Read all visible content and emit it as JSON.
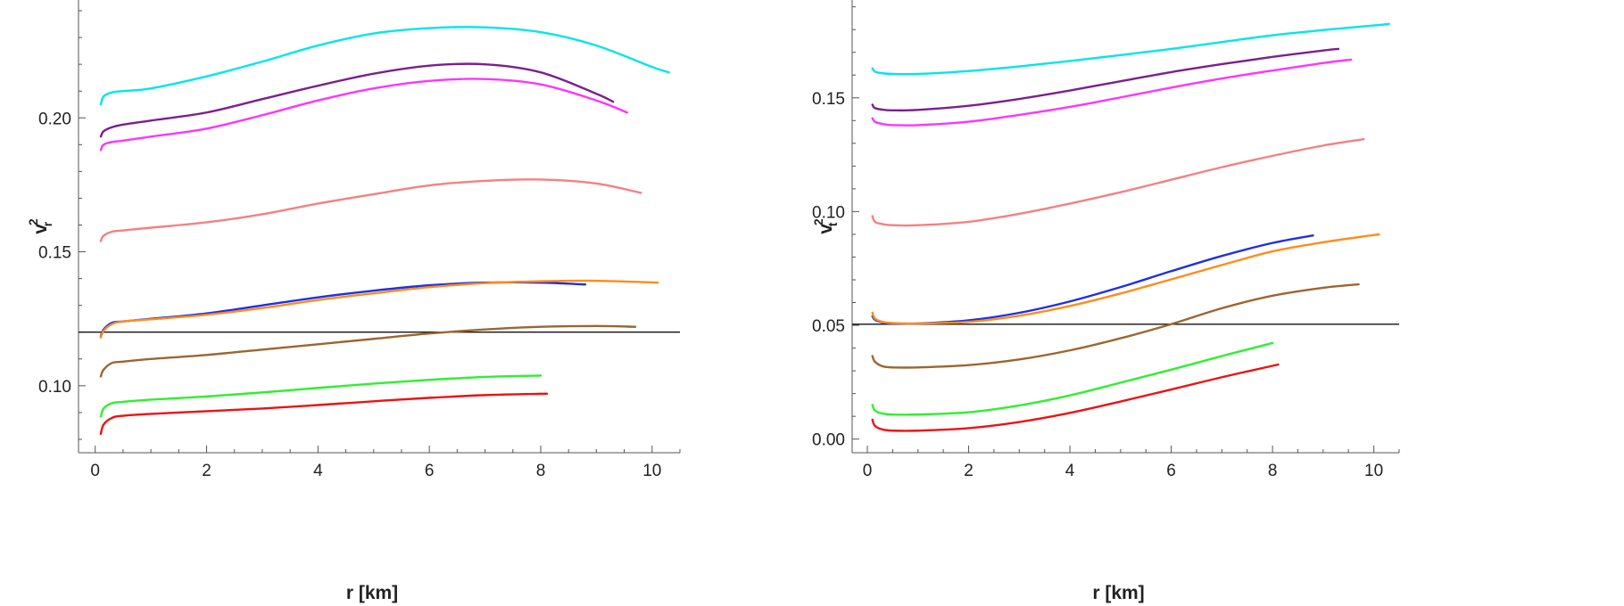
{
  "chart_data": [
    {
      "type": "line",
      "xlabel": "r [km]",
      "ylabel": "v",
      "ylabel_sup": "2",
      "ylabel_sub": "r",
      "xlim": [
        -0.3,
        10.5
      ],
      "ylim": [
        0.075,
        0.244
      ],
      "x_ticks": [
        0,
        2,
        4,
        6,
        8,
        10
      ],
      "x_tick_labels": [
        "0",
        "2",
        "4",
        "6",
        "8",
        "10"
      ],
      "y_ticks": [
        0.1,
        0.15,
        0.2
      ],
      "y_tick_labels": [
        "0.10",
        "0.15",
        "0.20"
      ],
      "x_minor_step": 0.5,
      "y_minor_step": 0.01,
      "hline": 0.12,
      "grid": false,
      "series": [
        {
          "color": "#00e5ee",
          "points": [
            [
              0.1,
              0.205
            ],
            [
              0.15,
              0.208
            ],
            [
              0.3,
              0.2095
            ],
            [
              0.5,
              0.21
            ],
            [
              1,
              0.211
            ],
            [
              2,
              0.2155
            ],
            [
              3,
              0.221
            ],
            [
              4,
              0.227
            ],
            [
              5,
              0.2315
            ],
            [
              6,
              0.2335
            ],
            [
              7,
              0.2338
            ],
            [
              8,
              0.232
            ],
            [
              9,
              0.227
            ],
            [
              10,
              0.219
            ],
            [
              10.3,
              0.217
            ]
          ]
        },
        {
          "color": "#7b1f8f",
          "points": [
            [
              0.1,
              0.193
            ],
            [
              0.15,
              0.195
            ],
            [
              0.3,
              0.1965
            ],
            [
              0.5,
              0.1975
            ],
            [
              1,
              0.199
            ],
            [
              2,
              0.202
            ],
            [
              3,
              0.207
            ],
            [
              4,
              0.212
            ],
            [
              5,
              0.2165
            ],
            [
              6,
              0.2195
            ],
            [
              7,
              0.22
            ],
            [
              8,
              0.217
            ],
            [
              9,
              0.209
            ],
            [
              9.3,
              0.206
            ]
          ]
        },
        {
          "color": "#ff33ff",
          "points": [
            [
              0.1,
              0.188
            ],
            [
              0.15,
              0.19
            ],
            [
              0.3,
              0.191
            ],
            [
              0.5,
              0.1915
            ],
            [
              1,
              0.193
            ],
            [
              2,
              0.196
            ],
            [
              3,
              0.201
            ],
            [
              4,
              0.2065
            ],
            [
              5,
              0.211
            ],
            [
              6,
              0.2138
            ],
            [
              7,
              0.2145
            ],
            [
              8,
              0.2125
            ],
            [
              9,
              0.2065
            ],
            [
              9.55,
              0.202
            ]
          ]
        },
        {
          "color": "#f58080",
          "points": [
            [
              0.1,
              0.154
            ],
            [
              0.15,
              0.156
            ],
            [
              0.3,
              0.1575
            ],
            [
              0.5,
              0.158
            ],
            [
              1,
              0.159
            ],
            [
              2,
              0.161
            ],
            [
              3,
              0.164
            ],
            [
              4,
              0.168
            ],
            [
              5,
              0.1715
            ],
            [
              6,
              0.1748
            ],
            [
              7,
              0.1765
            ],
            [
              8,
              0.177
            ],
            [
              9,
              0.1755
            ],
            [
              9.8,
              0.172
            ]
          ]
        },
        {
          "color": "#1f2fe6",
          "points": [
            [
              0.1,
              0.1185
            ],
            [
              0.15,
              0.121
            ],
            [
              0.3,
              0.1235
            ],
            [
              0.5,
              0.124
            ],
            [
              1,
              0.125
            ],
            [
              2,
              0.127
            ],
            [
              3,
              0.13
            ],
            [
              4,
              0.133
            ],
            [
              5,
              0.1355
            ],
            [
              6,
              0.1375
            ],
            [
              7,
              0.1385
            ],
            [
              8,
              0.1385
            ],
            [
              8.8,
              0.1378
            ]
          ]
        },
        {
          "color": "#ff8c1a",
          "points": [
            [
              0.1,
              0.118
            ],
            [
              0.15,
              0.1205
            ],
            [
              0.3,
              0.123
            ],
            [
              0.5,
              0.124
            ],
            [
              1,
              0.1248
            ],
            [
              2,
              0.1265
            ],
            [
              3,
              0.129
            ],
            [
              4,
              0.132
            ],
            [
              5,
              0.1345
            ],
            [
              6,
              0.1368
            ],
            [
              7,
              0.1383
            ],
            [
              8,
              0.139
            ],
            [
              9,
              0.1392
            ],
            [
              10.1,
              0.1385
            ]
          ]
        },
        {
          "color": "#9c6530",
          "points": [
            [
              0.1,
              0.1035
            ],
            [
              0.15,
              0.106
            ],
            [
              0.3,
              0.1085
            ],
            [
              0.5,
              0.109
            ],
            [
              1,
              0.11
            ],
            [
              2,
              0.1115
            ],
            [
              3,
              0.1135
            ],
            [
              4,
              0.1155
            ],
            [
              5,
              0.1175
            ],
            [
              6,
              0.1195
            ],
            [
              7,
              0.121
            ],
            [
              8,
              0.122
            ],
            [
              9,
              0.1223
            ],
            [
              9.7,
              0.122
            ]
          ]
        },
        {
          "color": "#2ef02e",
          "points": [
            [
              0.1,
              0.0885
            ],
            [
              0.15,
              0.0915
            ],
            [
              0.3,
              0.0935
            ],
            [
              0.5,
              0.094
            ],
            [
              1,
              0.0948
            ],
            [
              2,
              0.096
            ],
            [
              3,
              0.0975
            ],
            [
              4,
              0.0992
            ],
            [
              5,
              0.1008
            ],
            [
              6,
              0.1022
            ],
            [
              7,
              0.1033
            ],
            [
              8,
              0.1038
            ]
          ]
        },
        {
          "color": "#ee1111",
          "points": [
            [
              0.1,
              0.082
            ],
            [
              0.15,
              0.0855
            ],
            [
              0.3,
              0.088
            ],
            [
              0.5,
              0.0888
            ],
            [
              1,
              0.0895
            ],
            [
              2,
              0.0905
            ],
            [
              3,
              0.0915
            ],
            [
              4,
              0.0928
            ],
            [
              5,
              0.0942
            ],
            [
              6,
              0.0955
            ],
            [
              7,
              0.0965
            ],
            [
              8,
              0.097
            ],
            [
              8.1,
              0.097
            ]
          ]
        }
      ]
    },
    {
      "type": "line",
      "xlabel": "r [km]",
      "ylabel": "v",
      "ylabel_sup": "2",
      "ylabel_sub": "t",
      "xlim": [
        -0.3,
        10.5
      ],
      "ylim": [
        -0.006,
        0.193
      ],
      "x_ticks": [
        0,
        2,
        4,
        6,
        8,
        10
      ],
      "x_tick_labels": [
        "0",
        "2",
        "4",
        "6",
        "8",
        "10"
      ],
      "y_ticks": [
        0.0,
        0.05,
        0.1,
        0.15
      ],
      "y_tick_labels": [
        "0.00",
        "0.05",
        "0.10",
        "0.15"
      ],
      "x_minor_step": 0.5,
      "y_minor_step": 0.01,
      "hline": 0.0505,
      "grid": false,
      "series": [
        {
          "color": "#00e5ee",
          "points": [
            [
              0.1,
              0.163
            ],
            [
              0.15,
              0.1615
            ],
            [
              0.3,
              0.1608
            ],
            [
              0.5,
              0.1605
            ],
            [
              1,
              0.1605
            ],
            [
              2,
              0.1618
            ],
            [
              3,
              0.1638
            ],
            [
              4,
              0.1662
            ],
            [
              5,
              0.1688
            ],
            [
              6,
              0.1715
            ],
            [
              7,
              0.1745
            ],
            [
              8,
              0.1775
            ],
            [
              9,
              0.1798
            ],
            [
              10,
              0.1818
            ],
            [
              10.3,
              0.1825
            ]
          ]
        },
        {
          "color": "#7b1f8f",
          "points": [
            [
              0.1,
              0.147
            ],
            [
              0.15,
              0.1455
            ],
            [
              0.3,
              0.1448
            ],
            [
              0.5,
              0.1445
            ],
            [
              1,
              0.1447
            ],
            [
              2,
              0.1465
            ],
            [
              3,
              0.1495
            ],
            [
              4,
              0.1532
            ],
            [
              5,
              0.1573
            ],
            [
              6,
              0.1613
            ],
            [
              7,
              0.1648
            ],
            [
              8,
              0.168
            ],
            [
              9,
              0.1708
            ],
            [
              9.3,
              0.1715
            ]
          ]
        },
        {
          "color": "#ff33ff",
          "points": [
            [
              0.1,
              0.141
            ],
            [
              0.15,
              0.1395
            ],
            [
              0.3,
              0.1385
            ],
            [
              0.5,
              0.138
            ],
            [
              1,
              0.138
            ],
            [
              2,
              0.1395
            ],
            [
              3,
              0.1425
            ],
            [
              4,
              0.146
            ],
            [
              5,
              0.1502
            ],
            [
              6,
              0.1545
            ],
            [
              7,
              0.1585
            ],
            [
              8,
              0.162
            ],
            [
              9,
              0.1653
            ],
            [
              9.55,
              0.1668
            ]
          ]
        },
        {
          "color": "#f58080",
          "points": [
            [
              0.1,
              0.098
            ],
            [
              0.15,
              0.0955
            ],
            [
              0.3,
              0.0945
            ],
            [
              0.5,
              0.094
            ],
            [
              1,
              0.094
            ],
            [
              2,
              0.0955
            ],
            [
              3,
              0.099
            ],
            [
              4,
              0.1035
            ],
            [
              5,
              0.1085
            ],
            [
              6,
              0.114
            ],
            [
              7,
              0.1195
            ],
            [
              8,
              0.1245
            ],
            [
              9,
              0.129
            ],
            [
              9.8,
              0.1318
            ]
          ]
        },
        {
          "color": "#1f2fe6",
          "points": [
            [
              0.1,
              0.054
            ],
            [
              0.15,
              0.0525
            ],
            [
              0.3,
              0.0513
            ],
            [
              0.5,
              0.0508
            ],
            [
              1,
              0.0508
            ],
            [
              2,
              0.0522
            ],
            [
              3,
              0.0555
            ],
            [
              4,
              0.0605
            ],
            [
              5,
              0.0668
            ],
            [
              6,
              0.0738
            ],
            [
              7,
              0.0805
            ],
            [
              8,
              0.0862
            ],
            [
              8.8,
              0.0895
            ]
          ]
        },
        {
          "color": "#ff8c1a",
          "points": [
            [
              0.1,
              0.0555
            ],
            [
              0.15,
              0.053
            ],
            [
              0.3,
              0.0515
            ],
            [
              0.5,
              0.051
            ],
            [
              1,
              0.0508
            ],
            [
              2,
              0.0515
            ],
            [
              3,
              0.0542
            ],
            [
              4,
              0.0585
            ],
            [
              5,
              0.064
            ],
            [
              6,
              0.0702
            ],
            [
              7,
              0.0765
            ],
            [
              8,
              0.0825
            ],
            [
              9,
              0.0865
            ],
            [
              10.1,
              0.09
            ]
          ]
        },
        {
          "color": "#9c6530",
          "points": [
            [
              0.1,
              0.0365
            ],
            [
              0.15,
              0.034
            ],
            [
              0.3,
              0.032
            ],
            [
              0.5,
              0.0315
            ],
            [
              1,
              0.0315
            ],
            [
              2,
              0.0325
            ],
            [
              3,
              0.035
            ],
            [
              4,
              0.039
            ],
            [
              5,
              0.0443
            ],
            [
              6,
              0.0505
            ],
            [
              7,
              0.0575
            ],
            [
              8,
              0.063
            ],
            [
              9,
              0.0665
            ],
            [
              9.7,
              0.068
            ]
          ]
        },
        {
          "color": "#2ef02e",
          "points": [
            [
              0.1,
              0.015
            ],
            [
              0.15,
              0.0125
            ],
            [
              0.3,
              0.0112
            ],
            [
              0.5,
              0.0108
            ],
            [
              1,
              0.0108
            ],
            [
              2,
              0.0118
            ],
            [
              3,
              0.0148
            ],
            [
              4,
              0.0192
            ],
            [
              5,
              0.0248
            ],
            [
              6,
              0.0305
            ],
            [
              7,
              0.0365
            ],
            [
              8,
              0.0422
            ]
          ]
        },
        {
          "color": "#ee1111",
          "points": [
            [
              0.1,
              0.0085
            ],
            [
              0.15,
              0.0058
            ],
            [
              0.3,
              0.0042
            ],
            [
              0.5,
              0.0037
            ],
            [
              1,
              0.0037
            ],
            [
              2,
              0.0048
            ],
            [
              3,
              0.0075
            ],
            [
              4,
              0.0115
            ],
            [
              5,
              0.0165
            ],
            [
              6,
              0.0218
            ],
            [
              7,
              0.0272
            ],
            [
              8,
              0.0322
            ],
            [
              8.1,
              0.0327
            ]
          ]
        }
      ]
    }
  ]
}
